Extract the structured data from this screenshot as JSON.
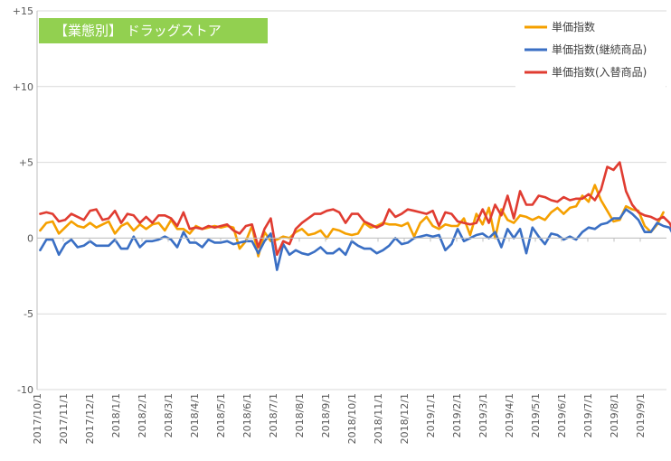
{
  "chart_data": {
    "type": "line",
    "title": "",
    "badge": "【業態別】 ドラッグストア",
    "xlabel": "",
    "ylabel": "",
    "ylim": [
      -10,
      15
    ],
    "y_ticks": [
      {
        "value": 15,
        "label": "+15"
      },
      {
        "value": 10,
        "label": "+10"
      },
      {
        "value": 5,
        "label": "+5"
      },
      {
        "value": 0,
        "label": "0"
      },
      {
        "value": -5,
        "label": "-5"
      },
      {
        "value": -10,
        "label": "-10"
      }
    ],
    "x_tick_labels": [
      "2017/10/1",
      "2017/11/1",
      "2017/12/1",
      "2018/1/1",
      "2018/2/1",
      "2018/3/1",
      "2018/4/1",
      "2018/5/1",
      "2018/6/1",
      "2018/7/1",
      "2018/8/1",
      "2018/9/1",
      "2018/10/1",
      "2018/11/1",
      "2018/12/1",
      "2019/1/1",
      "2019/2/1",
      "2019/3/1",
      "2019/4/1",
      "2019/5/1",
      "2019/6/1",
      "2019/7/1",
      "2019/8/1",
      "2019/9/1"
    ],
    "grid": {
      "horizontal": true,
      "vertical": false
    },
    "legend_position": "top-right",
    "series": [
      {
        "name": "単価指数",
        "color": "#F5A000",
        "values": [
          0.5,
          1.0,
          1.1,
          0.3,
          0.7,
          1.1,
          0.8,
          0.7,
          1.0,
          0.7,
          0.9,
          1.1,
          0.3,
          0.8,
          1.0,
          0.5,
          0.9,
          0.6,
          0.9,
          1.0,
          0.5,
          1.2,
          0.6,
          0.6,
          0.3,
          0.8,
          0.6,
          0.7,
          0.8,
          0.7,
          0.8,
          0.7,
          -0.7,
          -0.2,
          0.8,
          -1.2,
          0.4,
          -0.2,
          -0.1,
          0.1,
          0.0,
          0.4,
          0.6,
          0.2,
          0.3,
          0.5,
          0.0,
          0.6,
          0.5,
          0.3,
          0.2,
          0.3,
          1.0,
          0.7,
          0.8,
          1.0,
          0.9,
          0.9,
          0.8,
          1.0,
          0.1,
          1.0,
          1.4,
          0.8,
          0.6,
          0.9,
          0.8,
          0.8,
          1.3,
          0.2,
          1.6,
          0.9,
          2.0,
          0.0,
          1.9,
          1.2,
          1.0,
          1.5,
          1.4,
          1.2,
          1.4,
          1.2,
          1.7,
          2.0,
          1.6,
          2.0,
          2.1,
          2.8,
          2.4,
          3.5,
          2.5,
          1.8,
          1.1,
          1.2,
          2.1,
          1.9,
          1.8,
          0.8,
          0.4,
          0.9,
          1.7
        ]
      },
      {
        "name": "単価指数(継続商品)",
        "color": "#3A6FC4",
        "values": [
          -0.8,
          -0.1,
          -0.1,
          -1.1,
          -0.4,
          -0.1,
          -0.6,
          -0.5,
          -0.2,
          -0.5,
          -0.5,
          -0.5,
          -0.1,
          -0.7,
          -0.7,
          0.1,
          -0.6,
          -0.2,
          -0.2,
          -0.1,
          0.1,
          -0.1,
          -0.6,
          0.4,
          -0.3,
          -0.3,
          -0.6,
          -0.1,
          -0.3,
          -0.3,
          -0.2,
          -0.4,
          -0.3,
          -0.2,
          -0.2,
          -1.0,
          -0.2,
          0.3,
          -2.1,
          -0.4,
          -1.1,
          -0.8,
          -1.0,
          -1.1,
          -0.9,
          -0.6,
          -1.0,
          -1.0,
          -0.7,
          -1.1,
          -0.2,
          -0.5,
          -0.7,
          -0.7,
          -1.0,
          -0.8,
          -0.5,
          0.0,
          -0.4,
          -0.3,
          0.0,
          0.1,
          0.2,
          0.1,
          0.2,
          -0.8,
          -0.4,
          0.6,
          -0.2,
          0.0,
          0.2,
          0.3,
          0.0,
          0.4,
          -0.6,
          0.6,
          0.0,
          0.6,
          -1.0,
          0.7,
          0.1,
          -0.4,
          0.3,
          0.2,
          -0.1,
          0.1,
          -0.1,
          0.4,
          0.7,
          0.6,
          0.9,
          1.0,
          1.3,
          1.3,
          1.9,
          1.6,
          1.2,
          0.4,
          0.4,
          1.0,
          0.8,
          0.7,
          -0.1,
          -0.9,
          -0.5,
          0.6
        ]
      },
      {
        "name": "単価指数(入替商品)",
        "color": "#E03C31",
        "values": [
          1.6,
          1.7,
          1.6,
          1.1,
          1.2,
          1.6,
          1.4,
          1.2,
          1.8,
          1.9,
          1.2,
          1.3,
          1.8,
          1.0,
          1.6,
          1.5,
          1.0,
          1.4,
          1.0,
          1.5,
          1.5,
          1.3,
          0.8,
          1.7,
          0.6,
          0.7,
          0.6,
          0.8,
          0.7,
          0.8,
          0.9,
          0.5,
          0.3,
          0.8,
          0.9,
          -0.6,
          0.6,
          1.3,
          -1.1,
          -0.2,
          -0.4,
          0.6,
          1.0,
          1.3,
          1.6,
          1.6,
          1.8,
          1.9,
          1.7,
          1.0,
          1.6,
          1.6,
          1.1,
          0.9,
          0.7,
          0.9,
          1.9,
          1.4,
          1.6,
          1.9,
          1.8,
          1.7,
          1.6,
          1.8,
          0.8,
          1.7,
          1.6,
          1.1,
          1.0,
          0.9,
          1.0,
          1.9,
          1.0,
          2.2,
          1.5,
          2.8,
          1.3,
          3.1,
          2.2,
          2.2,
          2.8,
          2.7,
          2.5,
          2.4,
          2.7,
          2.5,
          2.6,
          2.6,
          2.9,
          2.5,
          3.2,
          4.7,
          4.5,
          5.0,
          3.1,
          2.2,
          1.7,
          1.5,
          1.4,
          1.2,
          1.4,
          1.0,
          0.2,
          -0.1,
          0.8,
          1.8
        ]
      }
    ]
  }
}
